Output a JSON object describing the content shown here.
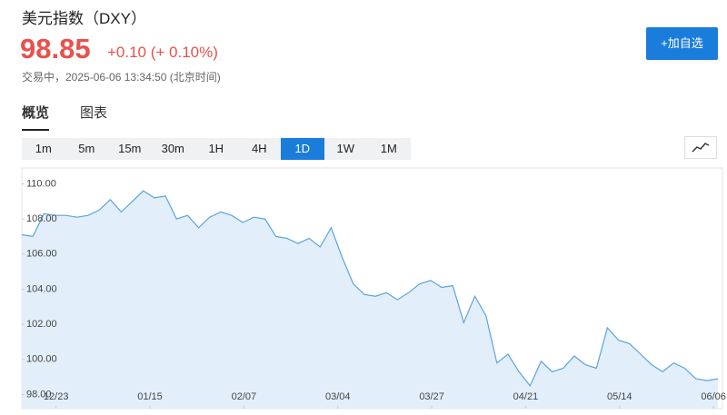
{
  "header": {
    "title": "美元指数（DXY）",
    "price": "98.85",
    "change": "+0.10 (+ 0.10%)",
    "status": "交易中，2025-06-06 13:34:50 (北京时间)",
    "button": "+加自选"
  },
  "tabs": {
    "items": [
      "概览",
      "图表"
    ],
    "active": 0
  },
  "intervals": {
    "items": [
      "1m",
      "5m",
      "15m",
      "30m",
      "1H",
      "4H",
      "1D",
      "1W",
      "1M"
    ],
    "active": 6
  },
  "chart_data": {
    "type": "area",
    "color": "#5ba3dc",
    "values": [
      107.1,
      107.0,
      108.3,
      108.2,
      108.2,
      108.1,
      108.2,
      108.5,
      109.1,
      108.4,
      109.0,
      109.6,
      109.2,
      109.3,
      108.0,
      108.2,
      107.5,
      108.1,
      108.4,
      108.2,
      107.8,
      108.1,
      108.0,
      107.0,
      106.9,
      106.6,
      106.9,
      106.4,
      107.5,
      105.8,
      104.3,
      103.7,
      103.6,
      103.8,
      103.4,
      103.8,
      104.3,
      104.5,
      104.1,
      104.2,
      102.1,
      103.6,
      102.5,
      99.8,
      100.3,
      99.3,
      98.5,
      99.9,
      99.3,
      99.5,
      100.2,
      99.7,
      99.5,
      101.8,
      101.1,
      100.9,
      100.3,
      99.7,
      99.3,
      99.8,
      99.5,
      98.9,
      98.8,
      98.9
    ],
    "xlim": [
      0,
      63
    ],
    "ylim": [
      97.2,
      110.9
    ],
    "xticks": [
      {
        "value": 3.1,
        "label": "12/23"
      },
      {
        "value": 11.6,
        "label": "01/15"
      },
      {
        "value": 20.1,
        "label": "02/07"
      },
      {
        "value": 28.6,
        "label": "03/04"
      },
      {
        "value": 37.1,
        "label": "03/27"
      },
      {
        "value": 45.6,
        "label": "04/21"
      },
      {
        "value": 54.1,
        "label": "05/14"
      },
      {
        "value": 62.6,
        "label": "06/06"
      }
    ],
    "yticks": [
      {
        "value": 98,
        "label": "98.00"
      },
      {
        "value": 100,
        "label": "100.00"
      },
      {
        "value": 102,
        "label": "102.00"
      },
      {
        "value": 104,
        "label": "104.00"
      },
      {
        "value": 106,
        "label": "106.00"
      },
      {
        "value": 108,
        "label": "108.00"
      },
      {
        "value": 110,
        "label": "110.00"
      }
    ]
  }
}
